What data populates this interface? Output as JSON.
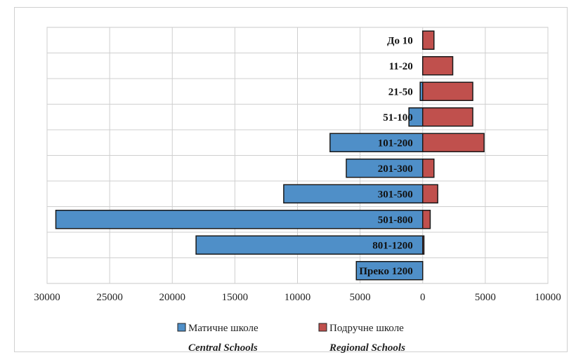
{
  "chart_data": {
    "type": "bar",
    "orientation": "horizontal",
    "title": "",
    "xlabel": "",
    "ylabel": "",
    "categories": [
      "До 10",
      "11-20",
      "21-50",
      "51-100",
      "101-200",
      "201-300",
      "301-500",
      "501-800",
      "801-1200",
      "Преко 1200"
    ],
    "series": [
      {
        "name": "Матичне школе",
        "subtitle": "Central Schools",
        "color": "#4f8fc8",
        "values": [
          0,
          0,
          -200,
          -1100,
          -7400,
          -6100,
          -11100,
          -29300,
          -18100,
          -5300
        ]
      },
      {
        "name": "Подручне школе",
        "subtitle": "Regional Schools",
        "color": "#c0504d",
        "values": [
          900,
          2400,
          4000,
          4000,
          4900,
          900,
          1200,
          600,
          100,
          0
        ]
      }
    ],
    "xlim": [
      -30000,
      10000
    ],
    "x_ticks": [
      -30000,
      -25000,
      -20000,
      -15000,
      -10000,
      -5000,
      0,
      5000,
      10000
    ],
    "x_tick_labels": [
      "30000",
      "25000",
      "20000",
      "15000",
      "10000",
      "5000",
      "0",
      "5000",
      "10000"
    ],
    "grid": true,
    "legend_position": "bottom"
  }
}
